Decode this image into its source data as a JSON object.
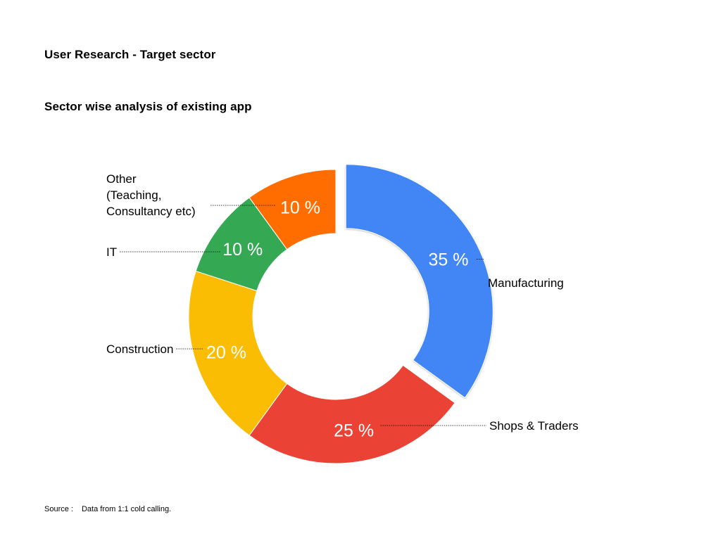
{
  "page_title": "User Research - Target sector",
  "source": {
    "label": "Source :",
    "value": "Data from 1:1 cold calling."
  },
  "chart_data": {
    "type": "pie",
    "style": "donut",
    "title": "Sector wise analysis of existing app",
    "categories": [
      "Manufacturing",
      "Shops & Traders",
      "Construction",
      "IT",
      "Other (Teaching, Consultancy etc)"
    ],
    "label_lines": [
      [
        "Manufacturing"
      ],
      [
        "Shops & Traders"
      ],
      [
        "Construction"
      ],
      [
        "IT"
      ],
      [
        "Other",
        "(Teaching,",
        "Consultancy etc)"
      ]
    ],
    "values": [
      35,
      25,
      20,
      10,
      10
    ],
    "value_labels": [
      "35 %",
      "25 %",
      "20 %",
      "10 %",
      "10 %"
    ],
    "colors": [
      "#4285f4",
      "#ea4335",
      "#fbbc04",
      "#34a853",
      "#ff6d01"
    ],
    "exploded": [
      "Manufacturing"
    ],
    "legend": "none"
  }
}
